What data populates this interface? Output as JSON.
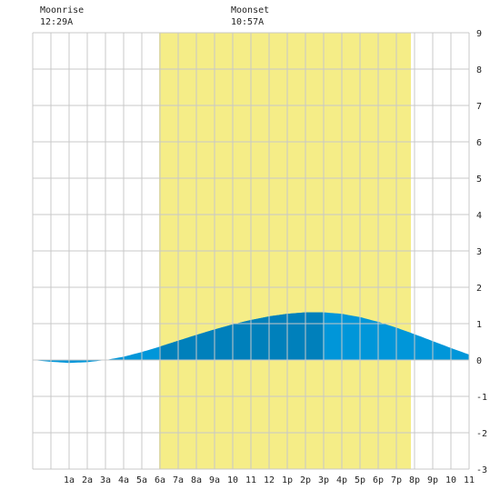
{
  "header": {
    "moonrise_label": "Moonrise",
    "moonrise_time": "12:29A",
    "moonset_label": "Moonset",
    "moonset_time": "10:57A"
  },
  "colors": {
    "daylight": "#f5ed87",
    "grid": "#c8c8c8",
    "tide_light": "#0096d9",
    "tide_dark": "#0080bb",
    "axis_text": "#222222"
  },
  "chart_data": {
    "type": "area",
    "title": "",
    "xlabel": "",
    "ylabel": "",
    "x_unit": "hours after midnight",
    "xlim": [
      -1,
      23
    ],
    "ylim": [
      -3,
      9
    ],
    "x_tick_labels": [
      "1a",
      "2a",
      "3a",
      "4a",
      "5a",
      "6a",
      "7a",
      "8a",
      "9a",
      "10",
      "11",
      "12",
      "1p",
      "2p",
      "3p",
      "4p",
      "5p",
      "6p",
      "7p",
      "8p",
      "9p",
      "10",
      "11"
    ],
    "x_tick_values": [
      1,
      2,
      3,
      4,
      5,
      6,
      7,
      8,
      9,
      10,
      11,
      12,
      13,
      14,
      15,
      16,
      17,
      18,
      19,
      20,
      21,
      22,
      23
    ],
    "y_ticks": [
      -3,
      -2,
      -1,
      0,
      1,
      2,
      3,
      4,
      5,
      6,
      7,
      8,
      9
    ],
    "daylight": {
      "start": 5.95,
      "end": 19.8
    },
    "moon_darker_band": {
      "start": 5.95,
      "end": 14.95
    },
    "tide": {
      "x": [
        -1,
        0,
        1,
        2,
        3,
        4,
        5,
        6,
        7,
        8,
        9,
        10,
        11,
        12,
        13,
        14,
        15,
        16,
        17,
        18,
        19,
        20,
        21,
        22,
        23
      ],
      "y": [
        0.0,
        -0.05,
        -0.08,
        -0.06,
        0.0,
        0.09,
        0.22,
        0.37,
        0.53,
        0.69,
        0.84,
        0.98,
        1.1,
        1.2,
        1.27,
        1.31,
        1.31,
        1.27,
        1.18,
        1.05,
        0.89,
        0.71,
        0.52,
        0.33,
        0.15
      ]
    },
    "grid": true,
    "legend": "none"
  }
}
